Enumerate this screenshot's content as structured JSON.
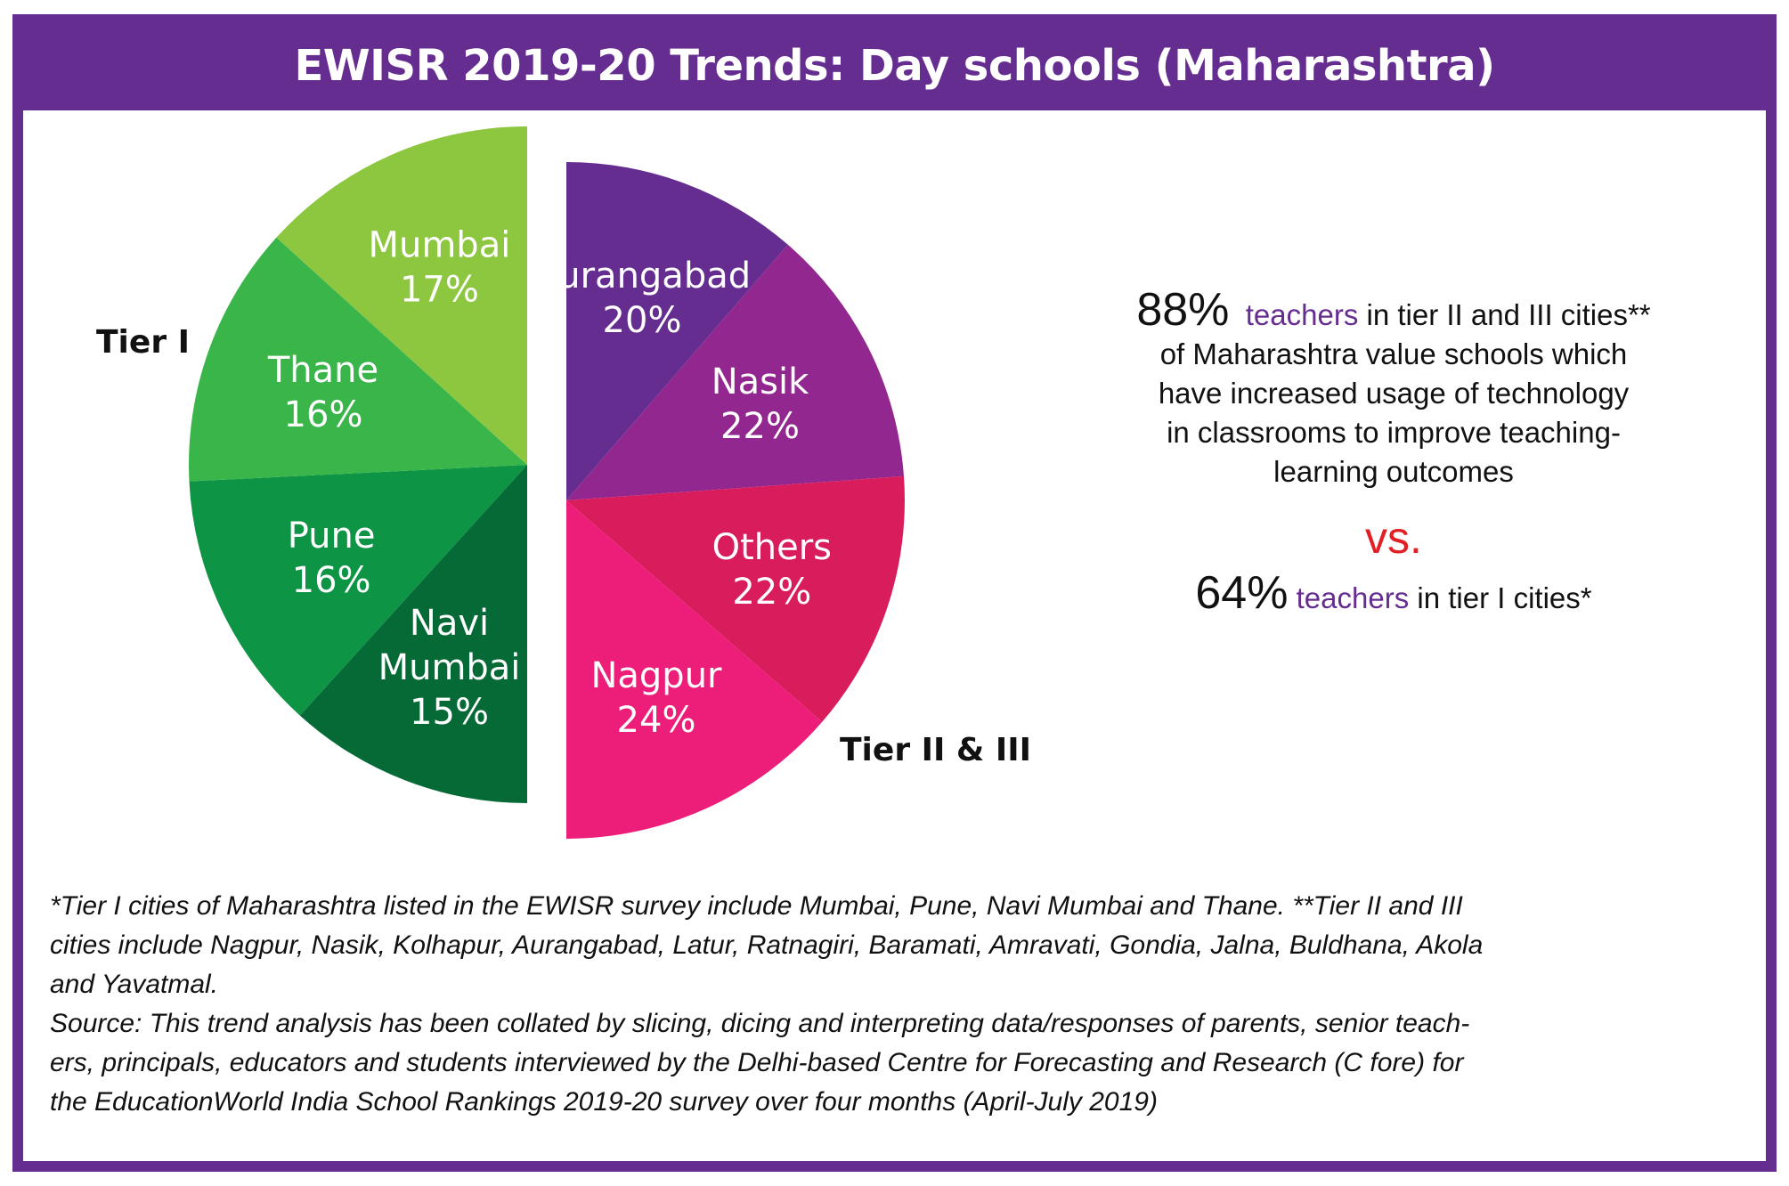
{
  "title": "EWISR 2019-20 Trends: Day schools (Maharashtra)",
  "chart_data": {
    "type": "pie",
    "title": "EWISR 2019-20 Trends: Day schools (Maharashtra)",
    "groups": [
      {
        "label": "Tier I",
        "slices": [
          {
            "name": "Mumbai",
            "value": 17,
            "label": "17%",
            "color": "#8dc63f"
          },
          {
            "name": "Thane",
            "value": 16,
            "label": "16%",
            "color": "#39b54a"
          },
          {
            "name": "Pune",
            "value": 16,
            "label": "16%",
            "color": "#0d9444"
          },
          {
            "name": "Navi Mumbai",
            "value": 15,
            "label": "15%",
            "color": "#066a37"
          }
        ]
      },
      {
        "label": "Tier II & III",
        "slices": [
          {
            "name": "Aurangabad",
            "value": 20,
            "label": "20%",
            "color": "#662d91"
          },
          {
            "name": "Nasik",
            "value": 22,
            "label": "22%",
            "color": "#92278f"
          },
          {
            "name": "Others",
            "value": 22,
            "label": "22%",
            "color": "#d91c5c"
          },
          {
            "name": "Nagpur",
            "value": 24,
            "label": "24%",
            "color": "#ed1e79"
          }
        ]
      }
    ]
  },
  "stats": {
    "tier23_pct": "88%",
    "tier23_word": "teachers",
    "tier23_rest1": " in tier II and III cities**",
    "tier23_line2": "of Maharashtra value schools which",
    "tier23_line3": "have increased usage of technology",
    "tier23_line4": "in classrooms to improve teaching-",
    "tier23_line5": "learning outcomes",
    "vs": "vs.",
    "tier1_pct": "64%",
    "tier1_word": "teachers",
    "tier1_rest": " in tier I cities*"
  },
  "footnotes": {
    "line1": "*Tier I cities of Maharashtra listed in the EWISR survey include Mumbai, Pune, Navi Mumbai and Thane. **Tier II and III",
    "line2": "cities include Nagpur, Nasik, Kolhapur, Aurangabad, Latur, Ratnagiri, Baramati, Amravati, Gondia, Jalna, Buldhana, Akola",
    "line3": "and Yavatmal.",
    "line4": "Source: This trend analysis has been collated by slicing, dicing and interpreting data/responses of parents, senior teach-",
    "line5": "ers, principals, educators and students interviewed by the Delhi-based Centre for Forecasting and Research (C fore) for",
    "line6": "the EducationWorld India School Rankings 2019-20 survey over four months (April-July 2019)"
  },
  "colors": {
    "brand_purple": "#662d91",
    "vs_red": "#e31e24"
  }
}
